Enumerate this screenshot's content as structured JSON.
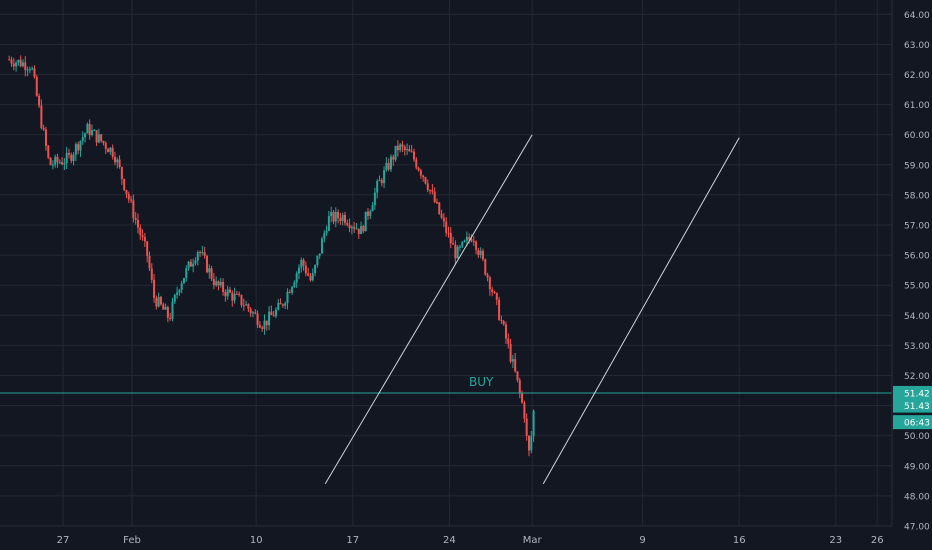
{
  "chart_data": {
    "type": "candlestick",
    "ylim": [
      47.0,
      64.2
    ],
    "y_ticks": [
      "47.00",
      "48.00",
      "49.00",
      "50.00",
      "51.00",
      "52.00",
      "53.00",
      "54.00",
      "55.00",
      "56.00",
      "57.00",
      "58.00",
      "59.00",
      "60.00",
      "61.00",
      "62.00",
      "63.00",
      "64.00"
    ],
    "x_ticks": [
      {
        "label": "27",
        "day": -5
      },
      {
        "label": "Feb",
        "day": 0
      },
      {
        "label": "10",
        "day": 9
      },
      {
        "label": "17",
        "day": 16
      },
      {
        "label": "24",
        "day": 23
      },
      {
        "label": "Mar",
        "day": 29
      },
      {
        "label": "9",
        "day": 37
      },
      {
        "label": "16",
        "day": 44
      },
      {
        "label": "23",
        "day": 51
      },
      {
        "label": "26",
        "day": 54
      }
    ],
    "grid": true,
    "colors": {
      "background": "#131722",
      "grid": "#242833",
      "up": "#26a69a",
      "down": "#ef5350",
      "horizontal_line": "#26a69a",
      "channel_lines": "#d1d4dc"
    },
    "anchor_points": [
      {
        "day": -8.9,
        "price": 62.5
      },
      {
        "day": -7.3,
        "price": 62.3
      },
      {
        "day": -6.6,
        "price": 60.5
      },
      {
        "day": -6.0,
        "price": 59.0
      },
      {
        "day": -4.6,
        "price": 59.2
      },
      {
        "day": -3.2,
        "price": 60.2
      },
      {
        "day": -1.3,
        "price": 59.4
      },
      {
        "day": 0.1,
        "price": 57.4
      },
      {
        "day": 1.1,
        "price": 56.0
      },
      {
        "day": 1.6,
        "price": 54.6
      },
      {
        "day": 2.7,
        "price": 53.9
      },
      {
        "day": 3.4,
        "price": 55.0
      },
      {
        "day": 4.8,
        "price": 56.2
      },
      {
        "day": 6.1,
        "price": 55.0
      },
      {
        "day": 8.1,
        "price": 54.4
      },
      {
        "day": 9.5,
        "price": 53.7
      },
      {
        "day": 10.8,
        "price": 54.3
      },
      {
        "day": 12.3,
        "price": 55.8
      },
      {
        "day": 13.0,
        "price": 55.1
      },
      {
        "day": 14.2,
        "price": 57.2
      },
      {
        "day": 15.3,
        "price": 57.3
      },
      {
        "day": 16.6,
        "price": 56.8
      },
      {
        "day": 17.8,
        "price": 58.3
      },
      {
        "day": 19.3,
        "price": 59.6
      },
      {
        "day": 20.3,
        "price": 59.3
      },
      {
        "day": 21.3,
        "price": 58.5
      },
      {
        "day": 22.5,
        "price": 57.1
      },
      {
        "day": 23.5,
        "price": 56.0
      },
      {
        "day": 24.7,
        "price": 56.7
      },
      {
        "day": 26.0,
        "price": 55.0
      },
      {
        "day": 27.0,
        "price": 53.4
      },
      {
        "day": 27.8,
        "price": 52.0
      },
      {
        "day": 28.5,
        "price": 50.6
      },
      {
        "day": 28.7,
        "price": 49.2
      },
      {
        "day": 29.0,
        "price": 50.2
      },
      {
        "day": 29.2,
        "price": 51.4
      }
    ],
    "horizontal_line": {
      "price": 51.42
    },
    "annotation": {
      "text": "BUY",
      "day": 25.0,
      "price": 51.65
    },
    "price_labels": [
      {
        "text": "51.42",
        "price": 51.42,
        "color": "#26a69a"
      },
      {
        "text": "51.43",
        "price": 51.0,
        "color": "#26a69a"
      },
      {
        "text": "06:43",
        "price": 50.45,
        "color": "#26a69a"
      }
    ],
    "trend_lines": [
      {
        "from": {
          "day": 14.0,
          "price": 48.4
        },
        "to": {
          "day": 29.0,
          "price": 60.0
        }
      },
      {
        "from": {
          "day": 29.8,
          "price": 48.4
        },
        "to": {
          "day": 44.0,
          "price": 59.9
        }
      }
    ]
  }
}
